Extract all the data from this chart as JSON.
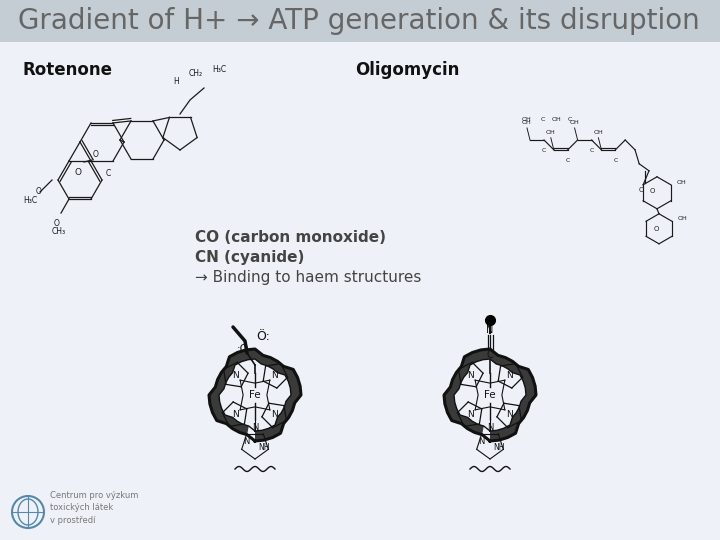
{
  "title": "Gradient of H+ → ATP generation & its disruption",
  "title_fontsize": 20,
  "title_color": "#666666",
  "title_bg_color": "#c8d0d8",
  "bg_color": "#f0f4f8",
  "wave_color1": "#c0d4e4",
  "wave_color2": "#b8ccd8",
  "rotenone_label": "Rotenone",
  "oligomycin_label": "Oligomycin",
  "co_line1": "CO (carbon monoxide)",
  "co_line2": "CN (cyanide)",
  "co_line3": "→ Binding to haem structures",
  "co_text_fontsize": 11,
  "label_fontsize": 12,
  "footer_text": "Centrum pro výzkum\ntoxických látek\nv prostředí",
  "footer_fontsize": 6,
  "text_color": "#444444",
  "struct_color": "#222222"
}
